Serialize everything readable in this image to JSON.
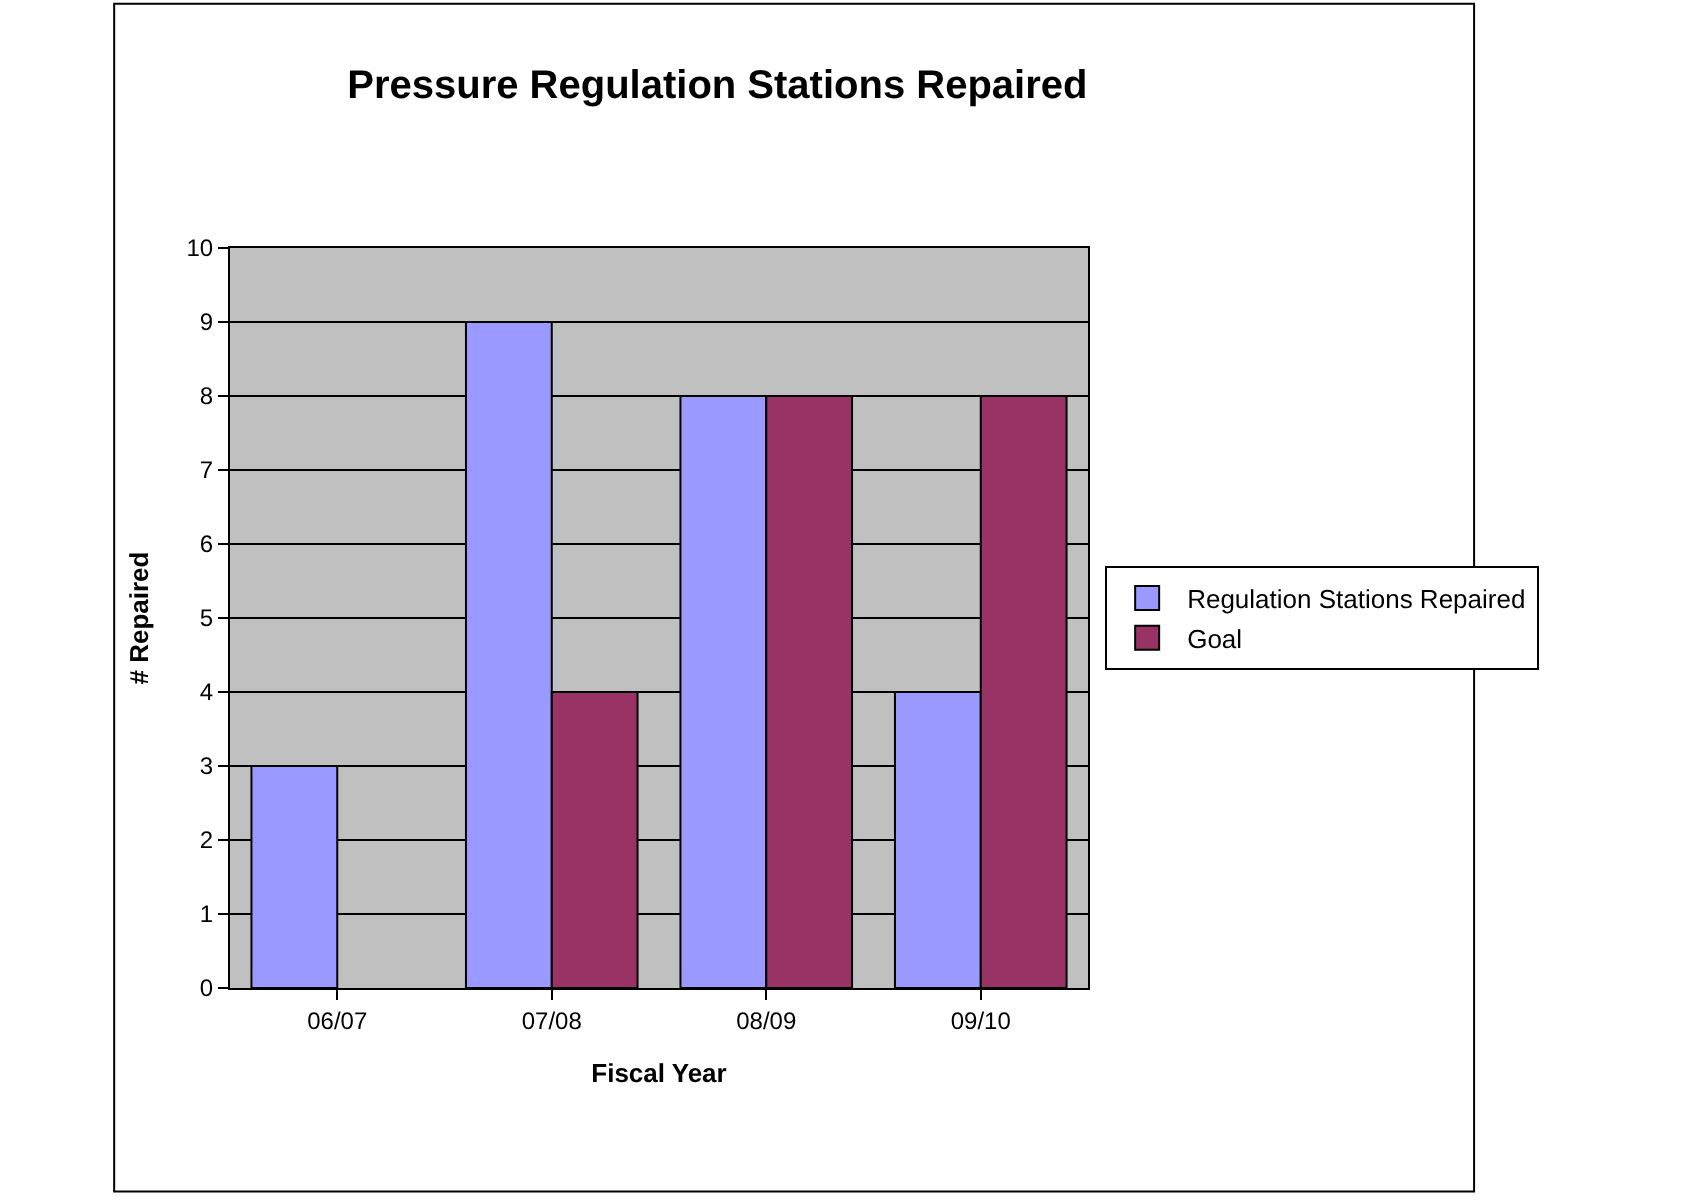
{
  "chart_data": {
    "type": "bar",
    "title": "Pressure Regulation Stations Repaired",
    "xlabel": "Fiscal Year",
    "ylabel": "# Repaired",
    "categories": [
      "06/07",
      "07/08",
      "08/09",
      "09/10"
    ],
    "series": [
      {
        "name": "Regulation Stations Repaired",
        "color": "#9999ff",
        "values": [
          3,
          9,
          8,
          4
        ]
      },
      {
        "name": "Goal",
        "color": "#993366",
        "values": [
          null,
          4,
          8,
          8
        ]
      }
    ],
    "ylim": [
      0,
      10
    ],
    "yticks": [
      0,
      1,
      2,
      3,
      4,
      5,
      6,
      7,
      8,
      9,
      10
    ],
    "grid": "y",
    "legend": "right"
  }
}
